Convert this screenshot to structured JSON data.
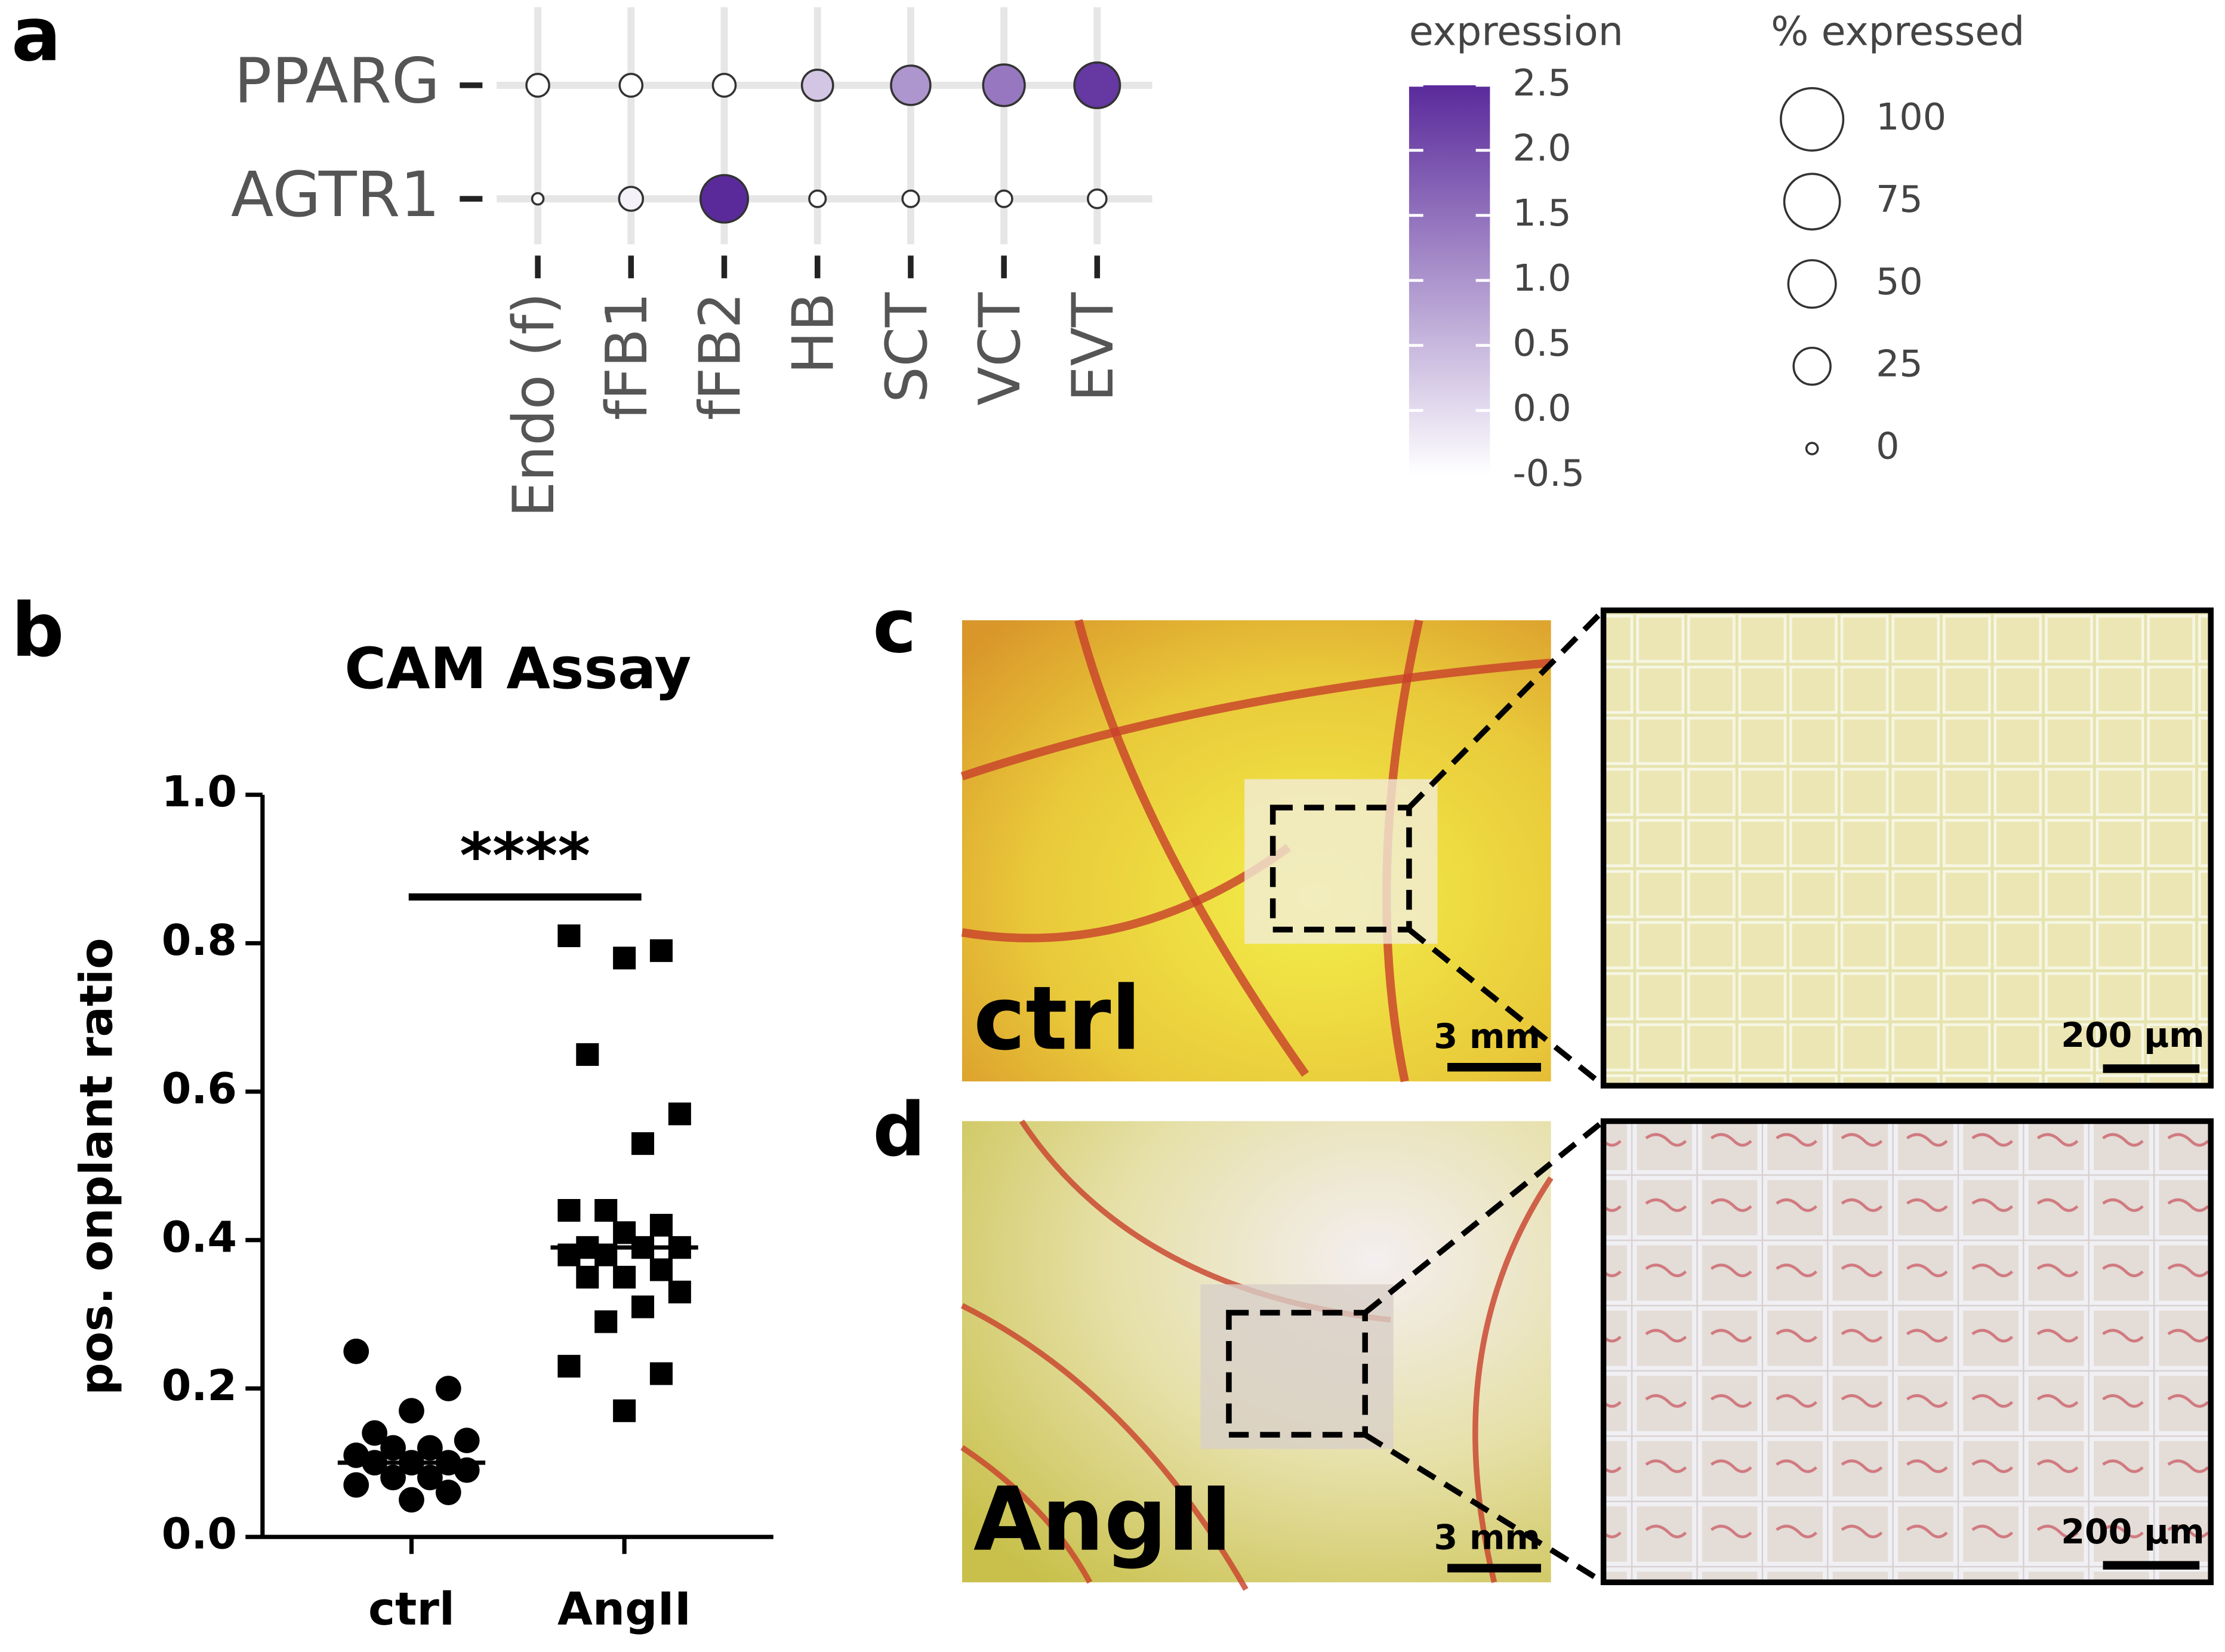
{
  "chart_data": [
    {
      "type": "dotplot",
      "panel": "a",
      "categories": [
        "Endo (f)",
        "fFB1",
        "fFB2",
        "HB",
        "SCT",
        "VCT",
        "EVT"
      ],
      "series": [
        {
          "name": "PPARG",
          "expression": [
            -0.5,
            -0.5,
            -0.5,
            0.3,
            1.0,
            1.4,
            2.3
          ],
          "pct_expressed": [
            5,
            5,
            5,
            15,
            30,
            35,
            45
          ]
        },
        {
          "name": "AGTR1",
          "expression": [
            -0.5,
            -0.3,
            2.5,
            -0.5,
            -0.5,
            -0.5,
            -0.5
          ],
          "pct_expressed": [
            0,
            6,
            50,
            1,
            1,
            1,
            2
          ]
        }
      ],
      "color_legend": {
        "title": "expression",
        "colors": [
          "#ffffff",
          "#5a2a9b"
        ],
        "lim": [
          -0.5,
          2.5
        ],
        "ticks": [
          2.5,
          {
            "value": 2.0,
            "label": "2.0"
          },
          1.5,
          {
            "value": 1.0,
            "label": "1.0"
          },
          0.5,
          {
            "value": 0,
            "label": "0.0"
          },
          -0.5
        ]
      },
      "size_legend": {
        "title": "% expressed",
        "values": [
          100,
          75,
          50,
          25,
          0
        ]
      },
      "grid": true
    },
    {
      "type": "dotplot_scatter",
      "panel": "b",
      "title": "CAM Assay",
      "y_label": "pos. onplant ratio",
      "categories": [
        "ctrl",
        "AngII"
      ],
      "series": [
        {
          "name": "ctrl",
          "marker": "circle",
          "color": "#000000",
          "median": 0.1,
          "values": [
            0.25,
            0.2,
            0.17,
            0.14,
            0.13,
            0.12,
            0.12,
            0.11,
            0.1,
            0.1,
            0.1,
            0.09,
            0.08,
            0.08,
            0.07,
            0.06,
            0.05
          ]
        },
        {
          "name": "AngII",
          "marker": "square",
          "color": "#000000",
          "median": 0.39,
          "values": [
            0.81,
            0.79,
            0.78,
            0.65,
            0.57,
            0.53,
            0.44,
            0.44,
            0.42,
            0.41,
            0.39,
            0.39,
            0.39,
            0.38,
            0.38,
            0.36,
            0.35,
            0.35,
            0.33,
            0.31,
            0.29,
            0.23,
            0.22,
            0.17
          ]
        }
      ],
      "ylim": [
        0,
        1
      ],
      "yticks": [
        {
          "value": 0,
          "label": "0.0"
        },
        0.2,
        0.4,
        0.6,
        0.8,
        {
          "value": 1,
          "label": "1.0"
        }
      ],
      "annotation": "****"
    }
  ],
  "photo_panels": [
    {
      "letter": "c",
      "label": "ctrl",
      "scale_left": "3 mm",
      "scale_right": "200 µm"
    },
    {
      "letter": "d",
      "label": "AngII",
      "scale_left": "3 mm",
      "scale_right": "200 µm"
    }
  ]
}
